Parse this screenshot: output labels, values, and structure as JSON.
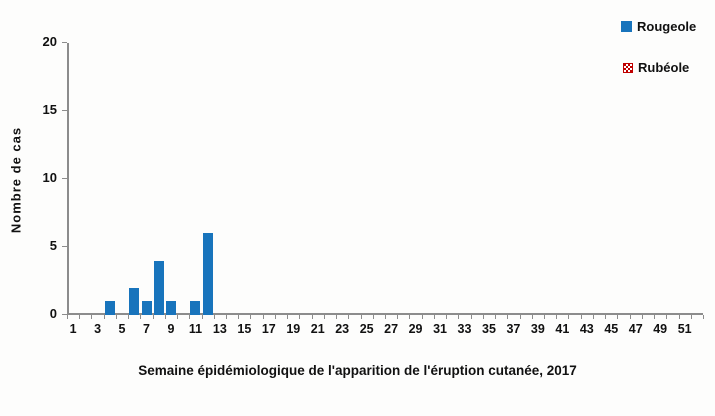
{
  "chart_data": {
    "type": "bar",
    "title": "",
    "xlabel": "Semaine épidémiologique de l'apparition de l'éruption cutanée, 2017",
    "ylabel": "Nombre de cas",
    "weeks_total": 52,
    "xtick_labels": [
      "1",
      "3",
      "5",
      "7",
      "9",
      "11",
      "13",
      "15",
      "17",
      "19",
      "21",
      "23",
      "25",
      "27",
      "29",
      "31",
      "33",
      "35",
      "37",
      "39",
      "41",
      "43",
      "45",
      "47",
      "49",
      "51"
    ],
    "ylim": [
      0,
      20
    ],
    "yticks": [
      0,
      5,
      10,
      15,
      20
    ],
    "grid": false,
    "legend_position": "top-right",
    "series": [
      {
        "name": "Rougeole",
        "color": "#1874bc",
        "fill": "solid",
        "points": [
          {
            "week": 4,
            "cases": 1
          },
          {
            "week": 6,
            "cases": 2
          },
          {
            "week": 7,
            "cases": 1
          },
          {
            "week": 8,
            "cases": 4
          },
          {
            "week": 9,
            "cases": 1
          },
          {
            "week": 11,
            "cases": 1
          },
          {
            "week": 12,
            "cases": 6
          }
        ]
      },
      {
        "name": "Rubéole",
        "color": "#c00000",
        "fill": "pattern-dots",
        "points": []
      }
    ]
  }
}
